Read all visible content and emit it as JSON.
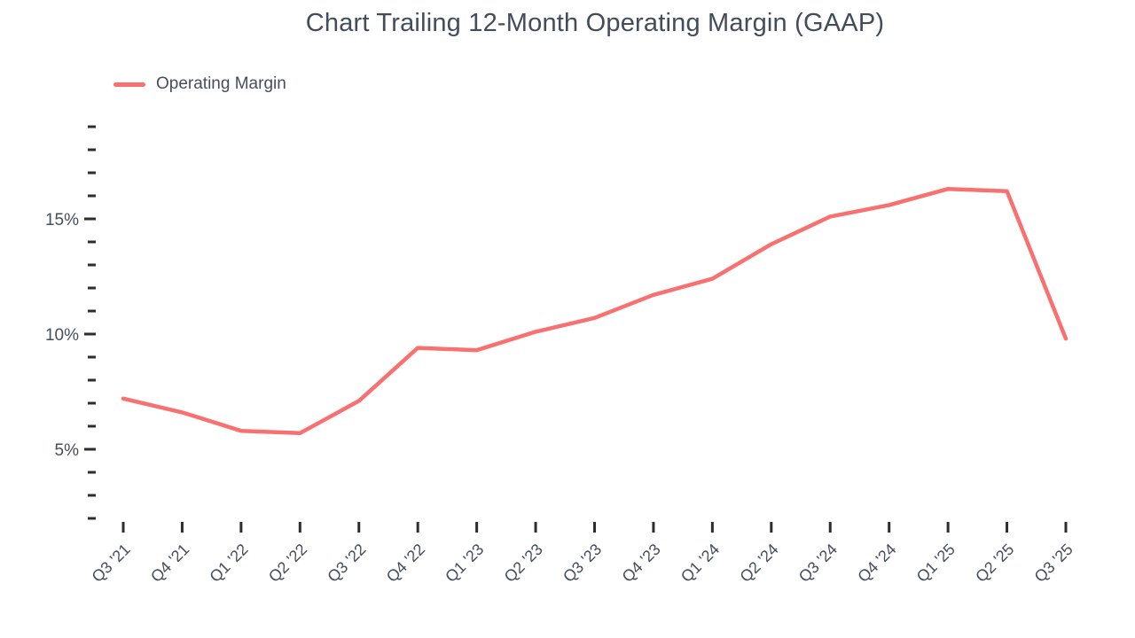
{
  "page": {
    "background": "#ffffff"
  },
  "title": {
    "text": "Chart Trailing 12-Month Operating Margin (GAAP)",
    "color": "#424c5b"
  },
  "legend": {
    "items": [
      {
        "label": "Operating Margin",
        "color": "#f97070"
      }
    ],
    "position": "top-left"
  },
  "colors": {
    "line": "#f97070",
    "tick": "#2d2d2d",
    "axis_label": "#454e5d"
  },
  "chart_data": {
    "type": "line",
    "title": "Chart Trailing 12-Month Operating Margin (GAAP)",
    "xlabel": "",
    "ylabel": "",
    "categories": [
      "Q3 '21",
      "Q4 '21",
      "Q1 '22",
      "Q2 '22",
      "Q3 '22",
      "Q4 '22",
      "Q1 '23",
      "Q2 '23",
      "Q3 '23",
      "Q4 '23",
      "Q1 '24",
      "Q2 '24",
      "Q3 '24",
      "Q4 '24",
      "Q1 '25",
      "Q2 '25",
      "Q3 '25"
    ],
    "series": [
      {
        "name": "Operating Margin",
        "color": "#f97070",
        "values": [
          7.2,
          6.6,
          5.8,
          5.7,
          7.1,
          9.4,
          9.3,
          10.1,
          10.7,
          11.7,
          12.4,
          13.9,
          15.1,
          15.6,
          16.3,
          16.2,
          9.8
        ]
      }
    ],
    "unit": "%",
    "y_axis": {
      "major_ticks": [
        15,
        10,
        5
      ],
      "minor_tick_min": 2,
      "minor_tick_max": 19,
      "minor_step": 1,
      "label_format": "{v}%"
    },
    "x_axis": {
      "tick_labels_rotation_deg": -45
    },
    "ylim": [
      1.5,
      19.5
    ],
    "grid": false,
    "legend_position": "top-left"
  }
}
